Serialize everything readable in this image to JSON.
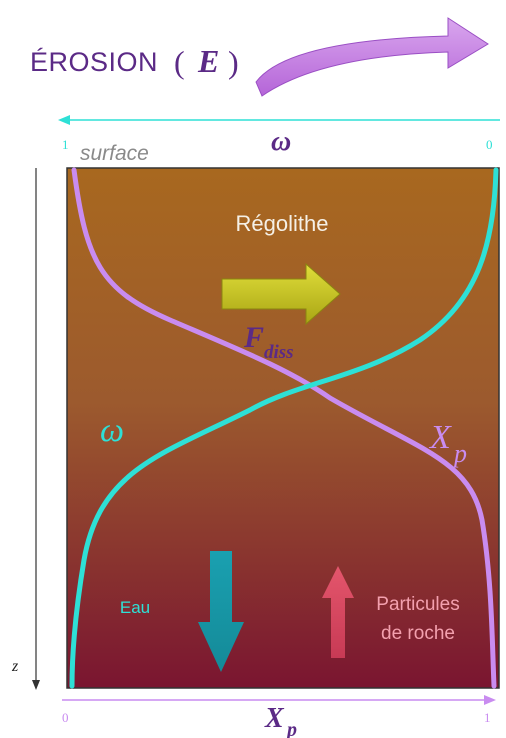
{
  "title": {
    "text": "ÉROSION",
    "symbol_open": "(",
    "symbol": "E",
    "symbol_close": ")"
  },
  "top_axis": {
    "symbol": "ω",
    "left_tick": "1",
    "right_tick": "0"
  },
  "surface_label": "surface",
  "depth_axis_label": "z",
  "regolith_label": "Régolithe",
  "flux_label": {
    "base": "F",
    "subscript": "diss"
  },
  "curve_labels": {
    "omega": "ω",
    "xp_base": "X",
    "xp_sub": "p"
  },
  "water_label": "Eau",
  "particles_label": {
    "line1": "Particules",
    "line2": "de roche"
  },
  "bottom_axis": {
    "symbol_base": "X",
    "symbol_sub": "p",
    "left_tick": "0",
    "right_tick": "1"
  },
  "colors": {
    "title": "#5b2a86",
    "omega": "#2ee0d6",
    "xp": "#c98cf0",
    "surface_text": "#8a8a8a",
    "box_top": "#a8681f",
    "box_bottom": "#7d1630",
    "flux_arrow": "#c8c51e",
    "water_arrow": "#1996a8",
    "particles_arrow": "#d8455e",
    "particles_text": "#f3a0ae"
  }
}
